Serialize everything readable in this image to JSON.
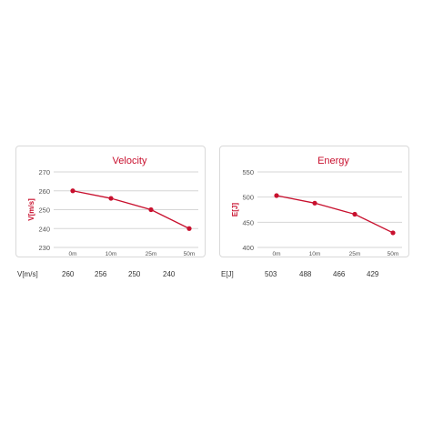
{
  "chart_data": [
    {
      "type": "line",
      "title": "Velocity",
      "ylabel": "V[m/s]",
      "xlabel": "",
      "categories": [
        "0m",
        "10m",
        "25m",
        "50m"
      ],
      "values": [
        260,
        256,
        250,
        240
      ],
      "y_ticks": [
        230,
        240,
        250,
        260,
        270
      ],
      "ylim": [
        230,
        270
      ],
      "grid": true,
      "color": "#c8102e",
      "table": {
        "label": "V[m/s]",
        "values": [
          "260",
          "256",
          "250",
          "240"
        ]
      }
    },
    {
      "type": "line",
      "title": "Energy",
      "ylabel": "E[J]",
      "xlabel": "",
      "categories": [
        "0m",
        "10m",
        "25m",
        "50m"
      ],
      "values": [
        503,
        488,
        466,
        429
      ],
      "y_ticks": [
        400,
        450,
        500,
        550
      ],
      "ylim": [
        400,
        550
      ],
      "grid": true,
      "color": "#c8102e",
      "table": {
        "label": "E[J]",
        "values": [
          "503",
          "488",
          "466",
          "429"
        ]
      }
    }
  ]
}
